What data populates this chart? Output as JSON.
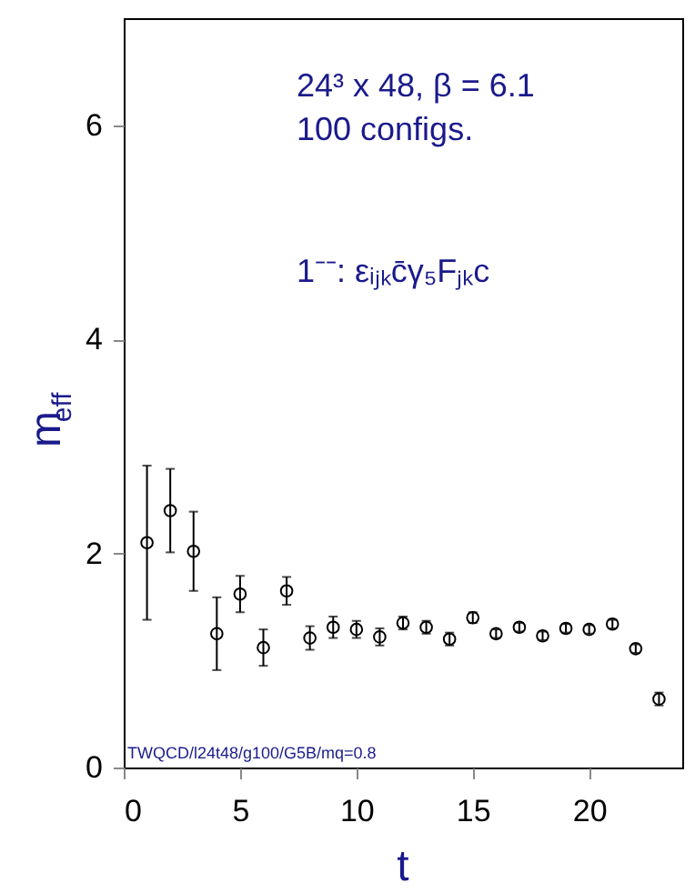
{
  "chart_data": {
    "type": "scatter",
    "x": [
      1,
      2,
      3,
      4,
      5,
      6,
      7,
      8,
      9,
      10,
      11,
      12,
      13,
      14,
      15,
      16,
      17,
      18,
      19,
      20,
      21,
      22,
      23
    ],
    "series": [
      {
        "color": "#000000",
        "values": [
          2.1,
          2.4,
          2.02,
          1.25,
          1.62,
          1.12,
          1.65,
          1.21,
          1.31,
          1.29,
          1.22,
          1.35,
          1.31,
          1.2,
          1.4,
          1.25,
          1.31,
          1.23,
          1.3,
          1.29,
          1.34,
          1.11,
          0.64
        ],
        "errors": [
          0.72,
          0.39,
          0.37,
          0.34,
          0.17,
          0.17,
          0.13,
          0.11,
          0.1,
          0.08,
          0.08,
          0.06,
          0.06,
          0.06,
          0.05,
          0.04,
          0.04,
          0.04,
          0.04,
          0.04,
          0.04,
          0.04,
          0.06
        ]
      }
    ],
    "xlabel": "t",
    "ylabel": "m$_{eff}$",
    "xlim": [
      0,
      24
    ],
    "xticks": [
      0,
      5,
      10,
      15,
      20
    ],
    "ylim": [
      0,
      7
    ],
    "yticks": [
      0,
      2,
      4,
      6
    ],
    "marker": "circle",
    "grid": false,
    "annotations": [
      "24³ x 48, β = 6.1",
      "100 configs.",
      "1⁻⁻:   εᵢⱼₖc̄γ₅Fⱼₖc",
      "TWQCD/l24t48/g100/G5B/mq=0.8"
    ]
  }
}
